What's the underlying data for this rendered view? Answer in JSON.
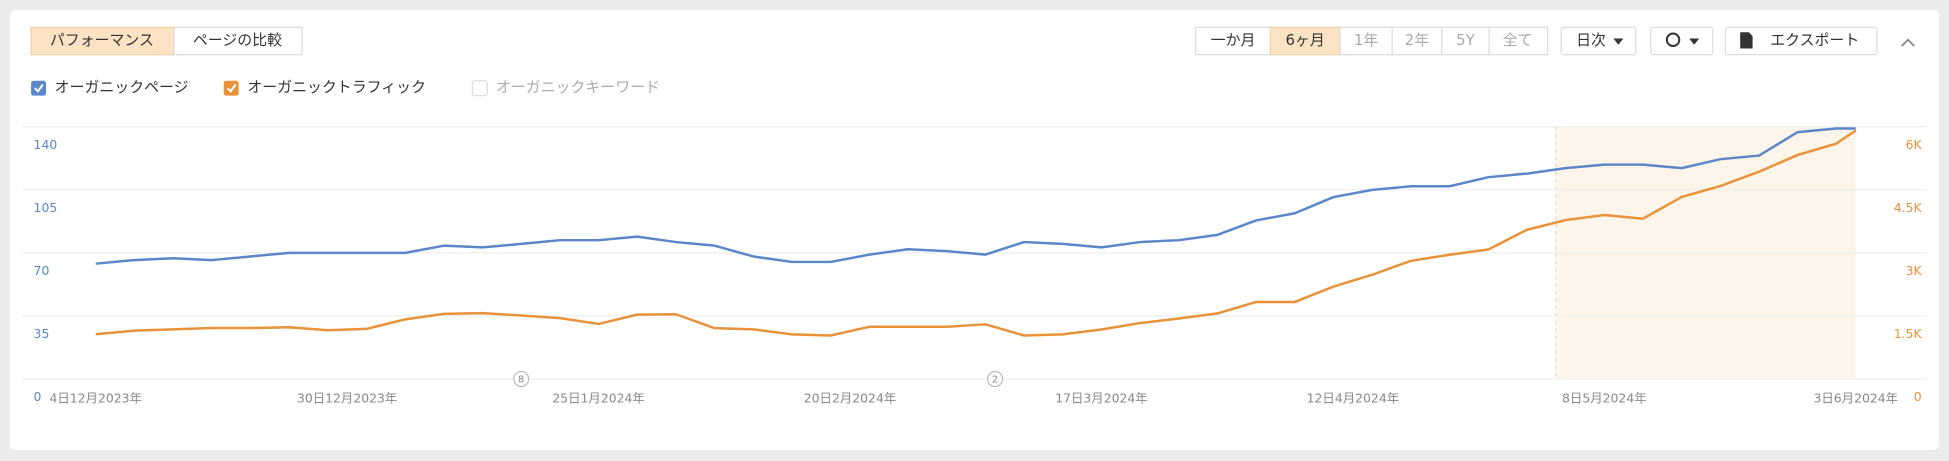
{
  "toolbar": {
    "tabs": [
      "パフォーマンス",
      "ページの比較"
    ],
    "ranges": [
      "一か月",
      "6ヶ月",
      "1年",
      "2年",
      "5Y",
      "全て"
    ],
    "interval": "日次",
    "export": "エクスポート"
  },
  "legend": {
    "inactive": "オーガニックキーワード"
  },
  "chart_data": {
    "type": "line",
    "x": [
      "2023-12-04",
      "2023-12-08",
      "2023-12-12",
      "2023-12-16",
      "2023-12-20",
      "2023-12-24",
      "2023-12-28",
      "2024-01-01",
      "2024-01-05",
      "2024-01-09",
      "2024-01-13",
      "2024-01-17",
      "2024-01-21",
      "2024-01-25",
      "2024-01-29",
      "2024-02-02",
      "2024-02-06",
      "2024-02-10",
      "2024-02-14",
      "2024-02-18",
      "2024-02-22",
      "2024-02-26",
      "2024-03-01",
      "2024-03-05",
      "2024-03-09",
      "2024-03-13",
      "2024-03-17",
      "2024-03-21",
      "2024-03-25",
      "2024-03-29",
      "2024-04-02",
      "2024-04-06",
      "2024-04-10",
      "2024-04-14",
      "2024-04-18",
      "2024-04-22",
      "2024-04-26",
      "2024-04-30",
      "2024-05-04",
      "2024-05-08",
      "2024-05-12",
      "2024-05-16",
      "2024-05-20",
      "2024-05-24",
      "2024-05-28",
      "2024-06-01",
      "2024-06-03"
    ],
    "series": [
      {
        "name": "オーガニックページ",
        "color": "#5b87c9",
        "axis": "y",
        "values": [
          64,
          66,
          67,
          66,
          68,
          70,
          70,
          70,
          70,
          74,
          73,
          75,
          77,
          77,
          79,
          76,
          74,
          68,
          65,
          65,
          69,
          72,
          71,
          69,
          76,
          75,
          73,
          76,
          77,
          80,
          88,
          92,
          101,
          105,
          107,
          107,
          112,
          114,
          117,
          119,
          119,
          117,
          122,
          124,
          137,
          139,
          139
        ]
      },
      {
        "name": "オーガニックトラフィック",
        "color": "#e8923a",
        "axis": "y2",
        "values": [
          1064,
          1150,
          1180,
          1212,
          1212,
          1230,
          1160,
          1190,
          1420,
          1550,
          1567,
          1510,
          1448,
          1310,
          1530,
          1540,
          1210,
          1180,
          1060,
          1035,
          1241,
          1241,
          1241,
          1300,
          1035,
          1060,
          1175,
          1330,
          1440,
          1560,
          1833,
          1833,
          2200,
          2480,
          2810,
          2956,
          3080,
          3550,
          3780,
          3900,
          3813,
          4330,
          4590,
          4930,
          5330,
          5600,
          5912
        ]
      }
    ],
    "xlim": [
      "2023-12-04",
      "2024-06-03"
    ],
    "xticks": [
      {
        "value": "2023-12-04",
        "label": "4日12月2023年"
      },
      {
        "value": "2023-12-30",
        "label": "30日12月2023年"
      },
      {
        "value": "2024-01-25",
        "label": "25日1月2024年"
      },
      {
        "value": "2024-02-20",
        "label": "20日2月2024年"
      },
      {
        "value": "2024-03-17",
        "label": "17日3月2024年"
      },
      {
        "value": "2024-04-12",
        "label": "12日4月2024年"
      },
      {
        "value": "2024-05-08",
        "label": "8日5月2024年"
      },
      {
        "value": "2024-06-03",
        "label": "3日6月2024年"
      }
    ],
    "ylim": [
      0,
      140
    ],
    "yticks": [
      0,
      35,
      70,
      105,
      140
    ],
    "y2lim": [
      0,
      6000
    ],
    "y2ticks": [
      {
        "value": 0,
        "label": "0"
      },
      {
        "value": 1500,
        "label": "1.5K"
      },
      {
        "value": 3000,
        "label": "3K"
      },
      {
        "value": 4500,
        "label": "4.5K"
      },
      {
        "value": 6000,
        "label": "6K"
      }
    ],
    "grid": true,
    "highlight": {
      "from": "2024-05-03",
      "to": "2024-06-03"
    },
    "annotations": [
      {
        "x": "2024-01-17",
        "label": "8"
      },
      {
        "x": "2024-03-06",
        "label": "2"
      }
    ]
  }
}
